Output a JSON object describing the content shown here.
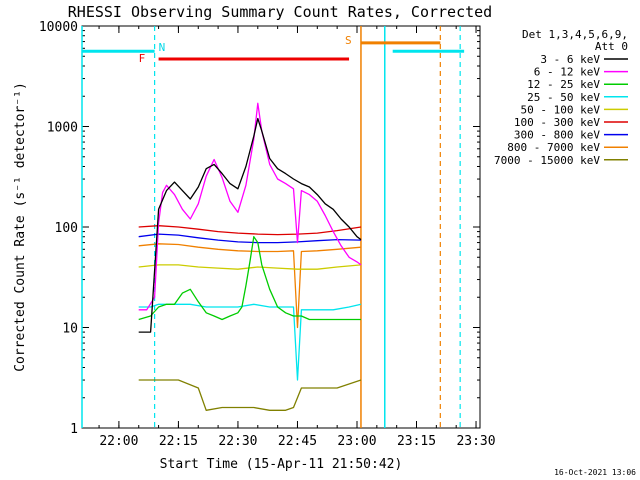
{
  "chart_data": {
    "type": "line",
    "title": "RHESSI Observing Summary Count Rates, Corrected",
    "xlabel": "Start Time (15-Apr-11 21:50:42)",
    "ylabel": "Corrected Count Rate (s⁻¹ detector⁻¹)",
    "yscale": "log",
    "xlim": [
      "21:50:42",
      "23:31:00"
    ],
    "ylim": [
      1,
      10000
    ],
    "x_ticks": [
      "22:00",
      "22:15",
      "22:30",
      "22:45",
      "23:00",
      "23:15",
      "23:30"
    ],
    "y_ticks": [
      "1",
      "10",
      "100",
      "1000",
      "10000"
    ],
    "legend_placement": "right",
    "legend_header": [
      "Det 1,3,4,5,6,9,",
      "Att 0"
    ],
    "timestamp": "16-Oct-2021 13:06",
    "annotations": [
      {
        "text": "N",
        "time": "22:09",
        "color": "#00d8e8"
      },
      {
        "text": "F",
        "time": "22:08",
        "color": "#ee0000"
      },
      {
        "text": "S",
        "time": "23:00",
        "color": "#f08000"
      }
    ],
    "overlays": {
      "night_bars": [
        {
          "start": "21:50:42",
          "end": "22:09:00",
          "value": 5600,
          "color": "#00e5ee"
        },
        {
          "start": "23:09:00",
          "end": "23:27:00",
          "value": 5600,
          "color": "#00e5ee"
        }
      ],
      "flare_bar": {
        "start": "22:10:00",
        "end": "22:58:00",
        "value": 4700,
        "color": "#ee0000"
      },
      "saa_bar": {
        "start": "23:01:00",
        "end": "23:21:00",
        "value": 6800,
        "color": "#f08000"
      },
      "solid_lines": [
        {
          "time": "21:50:42",
          "color": "#00e5ee"
        },
        {
          "time": "23:01:00",
          "color": "#f08000"
        },
        {
          "time": "23:07:00",
          "color": "#00e5ee"
        }
      ],
      "dashed_lines": [
        {
          "time": "22:09:00",
          "color": "#00e5ee"
        },
        {
          "time": "23:21:00",
          "color": "#f08000"
        },
        {
          "time": "23:26:00",
          "color": "#00e5ee"
        }
      ]
    },
    "series": [
      {
        "name": "3 - 6 keV",
        "color": "#000000",
        "x": [
          "22:05",
          "22:06",
          "22:07",
          "22:08",
          "22:10",
          "22:12",
          "22:14",
          "22:16",
          "22:18",
          "22:20",
          "22:22",
          "22:24",
          "22:26",
          "22:28",
          "22:30",
          "22:32",
          "22:34",
          "22:35",
          "22:36",
          "22:38",
          "22:40",
          "22:42",
          "22:44",
          "22:46",
          "22:48",
          "22:50",
          "22:52",
          "22:54",
          "22:56",
          "22:58",
          "23:00",
          "23:01"
        ],
        "values": [
          9,
          9,
          9,
          9,
          150,
          230,
          280,
          230,
          190,
          250,
          380,
          420,
          340,
          270,
          240,
          400,
          800,
          1200,
          900,
          480,
          380,
          340,
          300,
          270,
          250,
          210,
          170,
          150,
          120,
          100,
          80,
          75
        ]
      },
      {
        "name": "6 - 12 keV",
        "color": "#ff00ff",
        "x": [
          "22:05",
          "22:07",
          "22:09",
          "22:10",
          "22:11",
          "22:12",
          "22:14",
          "22:16",
          "22:18",
          "22:20",
          "22:22",
          "22:24",
          "22:26",
          "22:28",
          "22:30",
          "22:32",
          "22:34",
          "22:35",
          "22:36",
          "22:38",
          "22:40",
          "22:42",
          "22:44",
          "22:45",
          "22:46",
          "22:48",
          "22:50",
          "22:52",
          "22:54",
          "22:56",
          "22:58",
          "23:00",
          "23:01"
        ],
        "values": [
          15,
          15,
          20,
          110,
          220,
          260,
          210,
          150,
          120,
          170,
          320,
          470,
          310,
          180,
          140,
          260,
          750,
          1700,
          900,
          420,
          300,
          270,
          240,
          70,
          230,
          210,
          180,
          130,
          90,
          65,
          50,
          45,
          42
        ]
      },
      {
        "name": "12 - 25 keV",
        "color": "#00cc00",
        "x": [
          "22:05",
          "22:08",
          "22:10",
          "22:12",
          "22:14",
          "22:16",
          "22:18",
          "22:20",
          "22:22",
          "22:24",
          "22:26",
          "22:28",
          "22:30",
          "22:31",
          "22:32",
          "22:33",
          "22:34",
          "22:35",
          "22:36",
          "22:38",
          "22:40",
          "22:42",
          "22:44",
          "22:46",
          "22:48",
          "22:50",
          "22:52",
          "22:54",
          "22:56",
          "22:58",
          "23:00",
          "23:01"
        ],
        "values": [
          12,
          13,
          16,
          17,
          17,
          22,
          24,
          18,
          14,
          13,
          12,
          13,
          14,
          16,
          26,
          45,
          80,
          70,
          42,
          24,
          16,
          14,
          13,
          13,
          12,
          12,
          12,
          12,
          12,
          12,
          12,
          12
        ]
      },
      {
        "name": "25 - 50 keV",
        "color": "#00e5ee",
        "x": [
          "22:05",
          "22:08",
          "22:10",
          "22:14",
          "22:18",
          "22:22",
          "22:26",
          "22:30",
          "22:34",
          "22:38",
          "22:42",
          "22:44",
          "22:45",
          "22:46",
          "22:50",
          "22:54",
          "22:58",
          "23:01"
        ],
        "values": [
          16,
          16,
          17,
          17,
          17,
          16,
          16,
          16,
          17,
          16,
          16,
          16,
          3,
          15,
          15,
          15,
          16,
          17
        ]
      },
      {
        "name": "50 - 100 keV",
        "color": "#cccc00",
        "x": [
          "22:05",
          "22:10",
          "22:15",
          "22:20",
          "22:25",
          "22:30",
          "22:35",
          "22:40",
          "22:45",
          "22:50",
          "22:55",
          "23:01"
        ],
        "values": [
          40,
          42,
          42,
          40,
          39,
          38,
          40,
          39,
          38,
          38,
          40,
          42
        ]
      },
      {
        "name": "100 - 300 keV",
        "color": "#dd0000",
        "x": [
          "22:05",
          "22:10",
          "22:15",
          "22:20",
          "22:25",
          "22:30",
          "22:35",
          "22:40",
          "22:45",
          "22:50",
          "22:55",
          "23:01"
        ],
        "values": [
          100,
          103,
          100,
          95,
          90,
          87,
          85,
          84,
          85,
          87,
          92,
          100
        ]
      },
      {
        "name": "300 - 800 keV",
        "color": "#0000ee",
        "x": [
          "22:05",
          "22:10",
          "22:15",
          "22:20",
          "22:25",
          "22:30",
          "22:35",
          "22:40",
          "22:45",
          "22:50",
          "22:55",
          "23:01"
        ],
        "values": [
          80,
          85,
          83,
          78,
          74,
          71,
          70,
          70,
          71,
          73,
          75,
          74
        ]
      },
      {
        "name": "800 - 7000 keV",
        "color": "#f08000",
        "x": [
          "22:05",
          "22:10",
          "22:15",
          "22:20",
          "22:25",
          "22:30",
          "22:35",
          "22:40",
          "22:44",
          "22:45",
          "22:46",
          "22:50",
          "22:55",
          "23:01"
        ],
        "values": [
          65,
          68,
          67,
          63,
          60,
          58,
          57,
          57,
          58,
          10,
          57,
          58,
          60,
          63
        ]
      },
      {
        "name": "7000 - 15000 keV",
        "color": "#808000",
        "x": [
          "22:05",
          "22:10",
          "22:15",
          "22:20",
          "22:22",
          "22:26",
          "22:30",
          "22:34",
          "22:38",
          "22:42",
          "22:44",
          "22:46",
          "22:50",
          "22:55",
          "23:01"
        ],
        "values": [
          3,
          3,
          3,
          2.5,
          1.5,
          1.6,
          1.6,
          1.6,
          1.5,
          1.5,
          1.6,
          2.5,
          2.5,
          2.5,
          3
        ]
      }
    ]
  }
}
